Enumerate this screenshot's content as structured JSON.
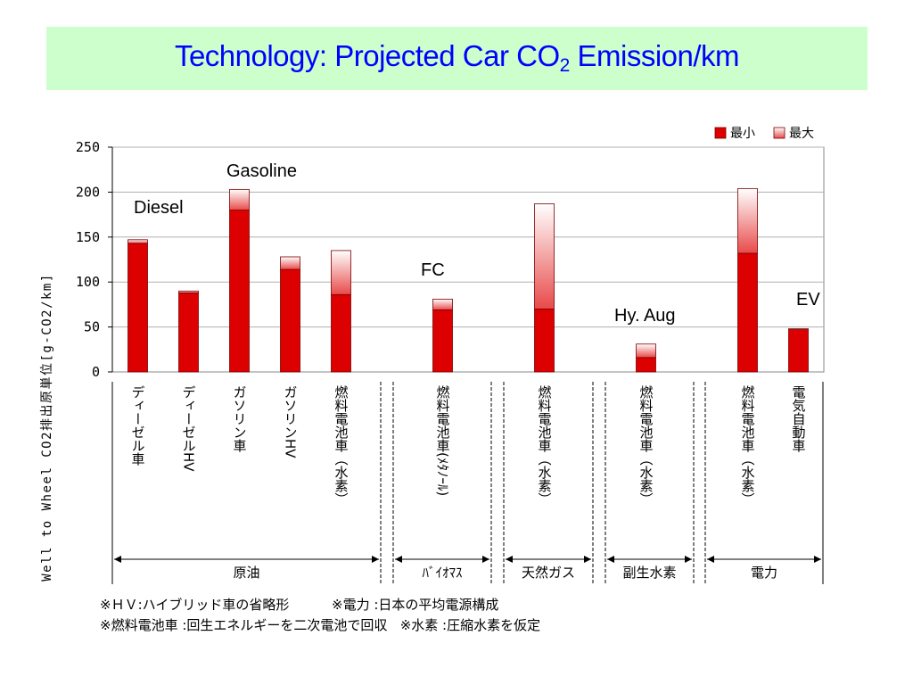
{
  "slide": {
    "title_main": "Technology: Projected Car CO",
    "title_sub": "2",
    "title_end": " Emission/km"
  },
  "chart_data": {
    "type": "bar",
    "stacked": true,
    "ylabel": "Well to Wheel CO2排出原単位[g-CO2/km]",
    "ylim": [
      0,
      250
    ],
    "yticks": [
      0,
      50,
      100,
      150,
      200,
      250
    ],
    "grid": true,
    "legend_position": "top-right",
    "categories": [
      "ディーゼル車",
      "ディーゼルHV",
      "ガソリン車",
      "ガソリンHV",
      "燃料電池車（水素）",
      "",
      "燃料電池車(ﾒﾀﾉｰﾙ)",
      "",
      "燃料電池車（水素）",
      "",
      "燃料電池車（水素）",
      "",
      "燃料電池車（水素）",
      "電気自動車"
    ],
    "series": [
      {
        "name": "最小",
        "color": "#dd0000",
        "values": [
          143,
          88,
          180,
          114,
          86,
          null,
          69,
          null,
          70,
          null,
          16,
          null,
          132,
          47
        ]
      },
      {
        "name": "最大",
        "color": "#ffe8e8",
        "values": [
          4,
          2,
          23,
          14,
          49,
          null,
          12,
          null,
          117,
          null,
          15,
          null,
          72,
          1
        ]
      }
    ],
    "annotations": [
      {
        "text": "Diesel",
        "near": 0
      },
      {
        "text": "Gasoline",
        "near": 2
      },
      {
        "text": "FC",
        "near": 6
      },
      {
        "text": "Hy. Aug",
        "near": 10
      },
      {
        "text": "EV",
        "near": 13
      }
    ],
    "groups": [
      {
        "label": "原油",
        "from": 0,
        "to": 4
      },
      {
        "label": "ﾊﾞｲｵﾏｽ",
        "from": 6,
        "to": 6
      },
      {
        "label": "天然ガス",
        "from": 8,
        "to": 8
      },
      {
        "label": "副生水素",
        "from": 10,
        "to": 10
      },
      {
        "label": "電力",
        "from": 12,
        "to": 13
      }
    ]
  },
  "notes": {
    "line1a": "※ＨＶ:ハイブリッド車の省略形",
    "line1b": "※電力 :日本の平均電源構成",
    "line2a": "※燃料電池車 :回生エネルギーを二次電池で回収",
    "line2b": "※水素 :圧縮水素を仮定"
  }
}
